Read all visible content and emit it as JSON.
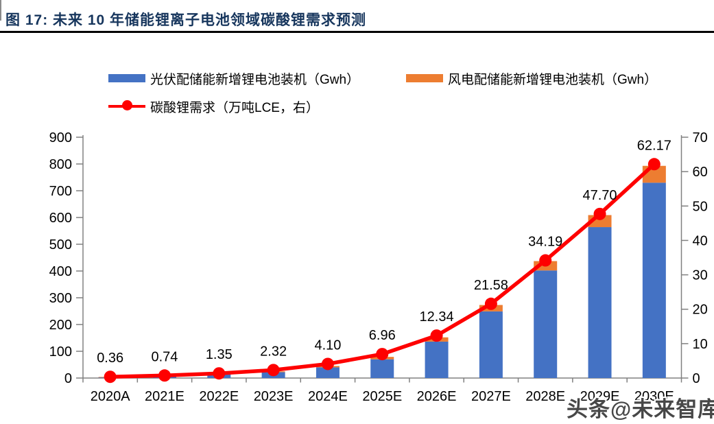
{
  "figure_title": "图 17: 未来 10 年储能锂离子电池领域碳酸锂需求预测",
  "watermark": "头条@未来智库",
  "legend": {
    "items": [
      {
        "label": "光伏配储能新增锂电池装机（Gwh）",
        "swatch": "bar",
        "color": "#4472C4"
      },
      {
        "label": "风电配储能新增锂电池装机（Gwh）",
        "swatch": "bar",
        "color": "#ED7D31"
      },
      {
        "label": "碳酸锂需求（万吨LCE，右）",
        "swatch": "line-marker",
        "color": "#FE0000"
      }
    ]
  },
  "chart_data": {
    "type": "bar",
    "subtype": "stacked-bar-plus-line-combo",
    "title": "未来 10 年储能锂离子电池领域碳酸锂需求预测",
    "categories": [
      "2020A",
      "2021E",
      "2022E",
      "2023E",
      "2024E",
      "2025E",
      "2026E",
      "2027E",
      "2028E",
      "2029E",
      "2030E"
    ],
    "series": [
      {
        "name": "光伏配储能新增锂电池装机（Gwh）",
        "type": "bar",
        "stacked": true,
        "yaxis": "left",
        "color": "#4472C4",
        "values": [
          3,
          6,
          13,
          22,
          40,
          70,
          136,
          249,
          402,
          564,
          730
        ]
      },
      {
        "name": "风电配储能新增锂电池装机（Gwh）",
        "type": "bar",
        "stacked": true,
        "yaxis": "left",
        "color": "#ED7D31",
        "values": [
          1,
          1,
          2,
          3,
          5,
          9,
          16,
          24,
          35,
          45,
          63
        ]
      },
      {
        "name": "碳酸锂需求（万吨LCE，右）",
        "type": "line",
        "yaxis": "right",
        "color": "#FE0000",
        "values": [
          0.36,
          0.74,
          1.35,
          2.32,
          4.1,
          6.96,
          12.34,
          21.58,
          34.19,
          47.7,
          62.17
        ],
        "data_labels": [
          "0.36",
          "0.74",
          "1.35",
          "2.32",
          "4.10",
          "6.96",
          "12.34",
          "21.58",
          "34.19",
          "47.70",
          "62.17"
        ]
      }
    ],
    "left_axis": {
      "min": 0,
      "max": 900,
      "step": 100,
      "tick_labels": [
        "0",
        "100",
        "200",
        "300",
        "400",
        "500",
        "600",
        "700",
        "800",
        "900"
      ]
    },
    "right_axis": {
      "min": 0,
      "max": 70,
      "step": 10,
      "tick_labels": [
        "0",
        "10",
        "20",
        "30",
        "40",
        "50",
        "60",
        "70"
      ]
    },
    "gridlines": false,
    "legend_position": "top",
    "axis_color": "#808080",
    "label_color": "#000000"
  }
}
